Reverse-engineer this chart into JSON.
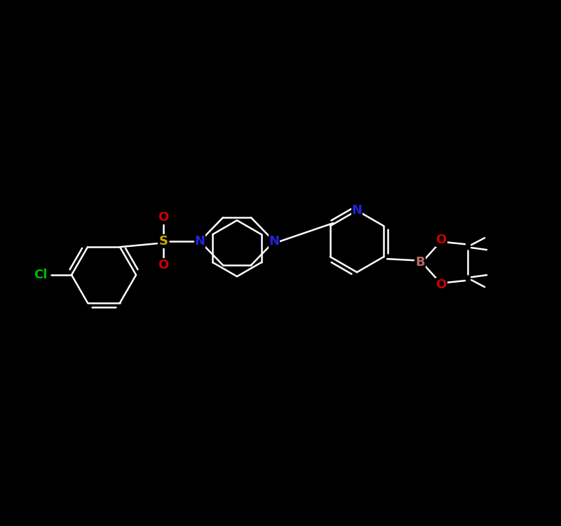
{
  "bg_color": "#000000",
  "bond_color": "#ffffff",
  "atom_colors": {
    "Cl": "#00bb00",
    "S": "#ccaa00",
    "N": "#2222dd",
    "O": "#cc0000",
    "B": "#bb6666"
  },
  "lw": 1.8,
  "fs": 13,
  "scale": 1.0
}
